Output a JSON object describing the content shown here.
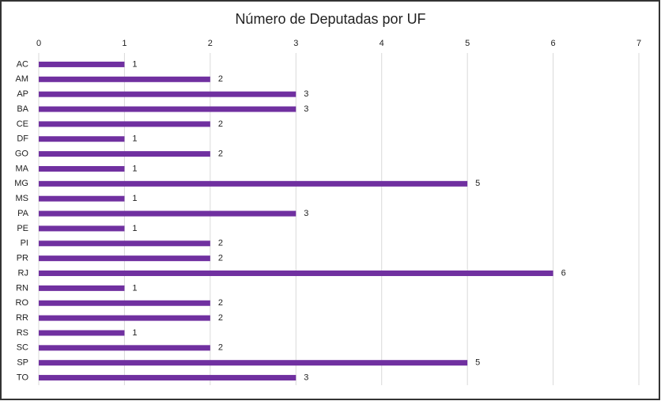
{
  "chart_data": {
    "type": "bar",
    "orientation": "horizontal",
    "title": "Número de Deputadas por UF",
    "categories": [
      "AC",
      "AM",
      "AP",
      "BA",
      "CE",
      "DF",
      "GO",
      "MA",
      "MG",
      "MS",
      "PA",
      "PE",
      "PI",
      "PR",
      "RJ",
      "RN",
      "RO",
      "RR",
      "RS",
      "SC",
      "SP",
      "TO"
    ],
    "values": [
      1,
      2,
      3,
      3,
      2,
      1,
      2,
      1,
      5,
      1,
      3,
      1,
      2,
      2,
      6,
      1,
      2,
      2,
      1,
      2,
      5,
      3
    ],
    "color": "#7030a0",
    "xlim": [
      0,
      7
    ],
    "xticks": [
      0,
      1,
      2,
      3,
      4,
      5,
      6,
      7
    ],
    "grid": true
  }
}
